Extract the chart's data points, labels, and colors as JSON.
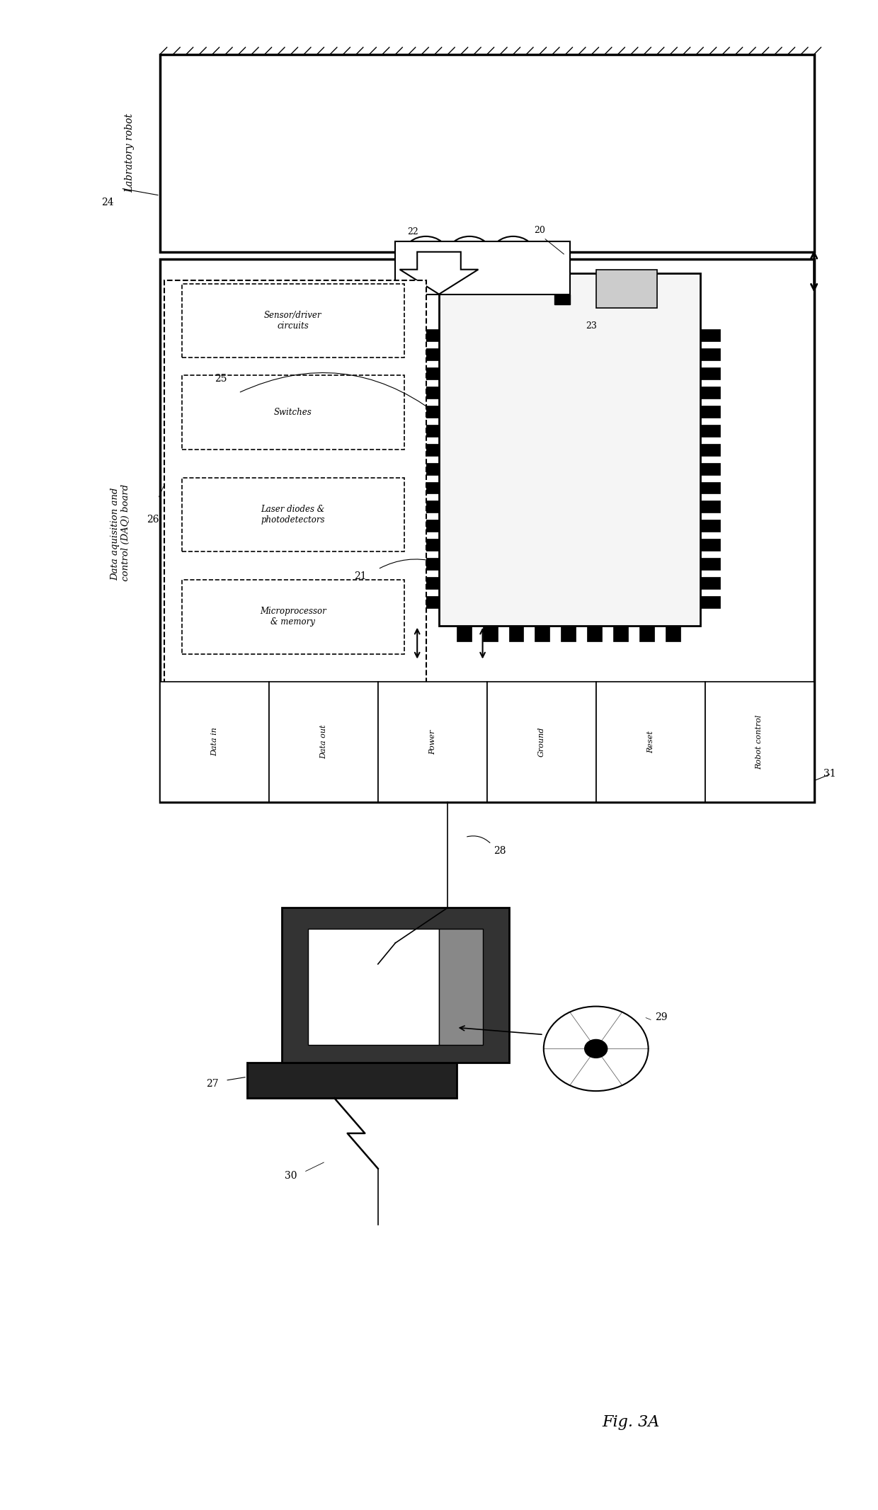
{
  "title": "Fig. 3A",
  "bg_color": "#ffffff",
  "fig_width": 12.4,
  "fig_height": 21.33,
  "labels": {
    "lab_robot": "Labratory robot",
    "daq_board": "Data aquisition and\n control (DAQ) board",
    "ref24": "24",
    "ref20": "20",
    "ref21": "21",
    "ref22": "22",
    "ref23": "23",
    "ref25": "25",
    "ref26": "26",
    "ref27": "27",
    "ref28": "28",
    "ref29": "29",
    "ref30": "30",
    "ref31": "31",
    "sensor_driver": "Sensor/driver\ncircuits",
    "switches": "Switches",
    "laser_diodes": "Laser diodes &\nphotodetectors",
    "microprocessor": "Microprocessor\n& memory",
    "data_in": "Data in",
    "data_out": "Data out",
    "power": "Power",
    "ground": "Ground",
    "reset": "Reset",
    "robot_control": "Robot control"
  }
}
